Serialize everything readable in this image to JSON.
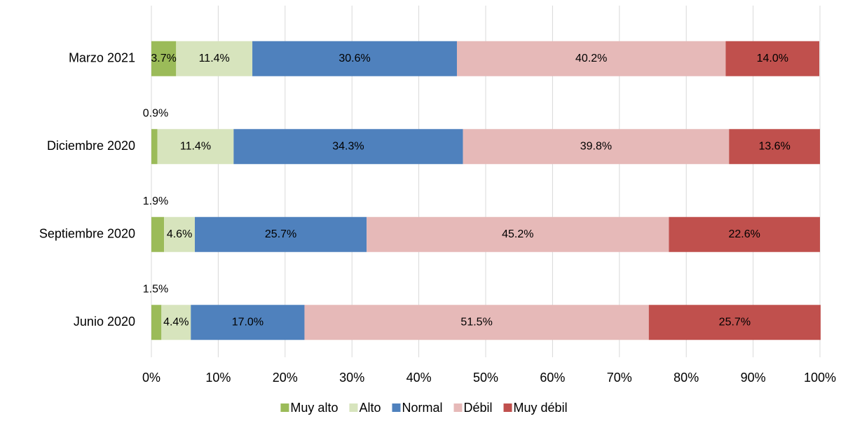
{
  "chart_data": {
    "type": "stacked_bar_horizontal",
    "categories": [
      "Marzo 2021",
      "Diciembre 2020",
      "Septiembre 2020",
      "Junio 2020"
    ],
    "series": [
      {
        "name": "Muy alto",
        "color": "#9bbb59",
        "values": [
          3.7,
          0.9,
          1.9,
          1.5
        ],
        "value_labels": [
          "3.7%",
          "0.9%",
          "1.9%",
          "1.5%"
        ]
      },
      {
        "name": "Alto",
        "color": "#d7e4bd",
        "values": [
          11.4,
          11.4,
          4.6,
          4.4
        ],
        "value_labels": [
          "11.4%",
          "11.4%",
          "4.6%",
          "4.4%"
        ]
      },
      {
        "name": "Normal",
        "color": "#4f81bd",
        "values": [
          30.6,
          34.3,
          25.7,
          17.0
        ],
        "value_labels": [
          "30.6%",
          "34.3%",
          "25.7%",
          "17.0%"
        ]
      },
      {
        "name": "Débil",
        "color": "#e6b9b8",
        "values": [
          40.2,
          39.8,
          45.2,
          51.5
        ],
        "value_labels": [
          "40.2%",
          "39.8%",
          "45.2%",
          "51.5%"
        ]
      },
      {
        "name": "Muy débil",
        "color": "#c0504d",
        "values": [
          14.0,
          13.6,
          22.6,
          25.7
        ],
        "value_labels": [
          "14.0%",
          "13.6%",
          "22.6%",
          "25.7%"
        ]
      }
    ],
    "xlim": [
      0,
      100
    ],
    "xticks": [
      {
        "value": 0,
        "label": "0%"
      },
      {
        "value": 10,
        "label": "10%"
      },
      {
        "value": 20,
        "label": "20%"
      },
      {
        "value": 30,
        "label": "30%"
      },
      {
        "value": 40,
        "label": "40%"
      },
      {
        "value": 50,
        "label": "50%"
      },
      {
        "value": 60,
        "label": "60%"
      },
      {
        "value": 70,
        "label": "70%"
      },
      {
        "value": 80,
        "label": "80%"
      },
      {
        "value": 90,
        "label": "90%"
      },
      {
        "value": 100,
        "label": "100%"
      }
    ],
    "grid": true,
    "legend": "bottom"
  }
}
